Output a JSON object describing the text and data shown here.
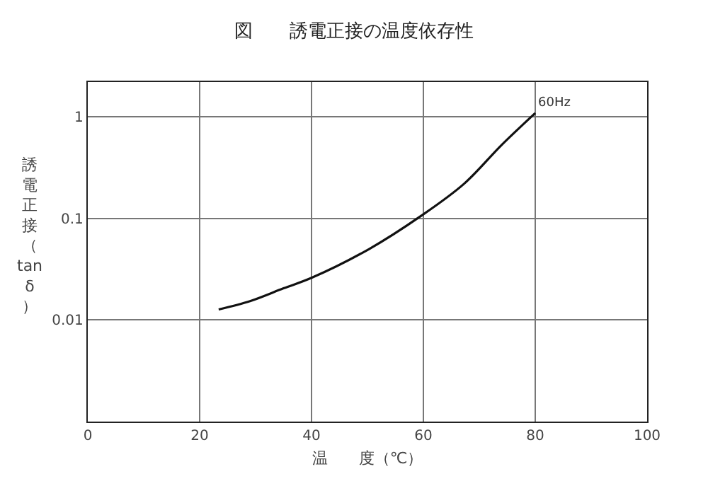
{
  "chart_data": {
    "type": "line",
    "title": "図　　誘電正接の温度依存性",
    "xlabel": "温　　度（℃）",
    "ylabel": "誘電正接（tanδ）",
    "x": [
      23.4,
      29.1,
      35,
      40,
      50.3,
      59.6,
      67.3,
      74,
      80
    ],
    "series": [
      {
        "color": "#111111",
        "values": [
          0.0127,
          0.0154,
          0.0205,
          0.026,
          0.05,
          0.106,
          0.22,
          0.53,
          1.09
        ]
      }
    ],
    "annotations": [
      {
        "text": "60Hz",
        "x": 80,
        "y": 1.09
      }
    ],
    "xlim": [
      0,
      100
    ],
    "xticks": [
      0,
      20,
      40,
      60,
      80,
      100
    ],
    "ylim": [
      0.001,
      2.2
    ],
    "yticks": [
      {
        "value": 0.001,
        "label": null
      },
      0.01,
      0.1,
      1
    ],
    "log": "y",
    "grid": true,
    "marker": "none",
    "line_style": "solid"
  }
}
